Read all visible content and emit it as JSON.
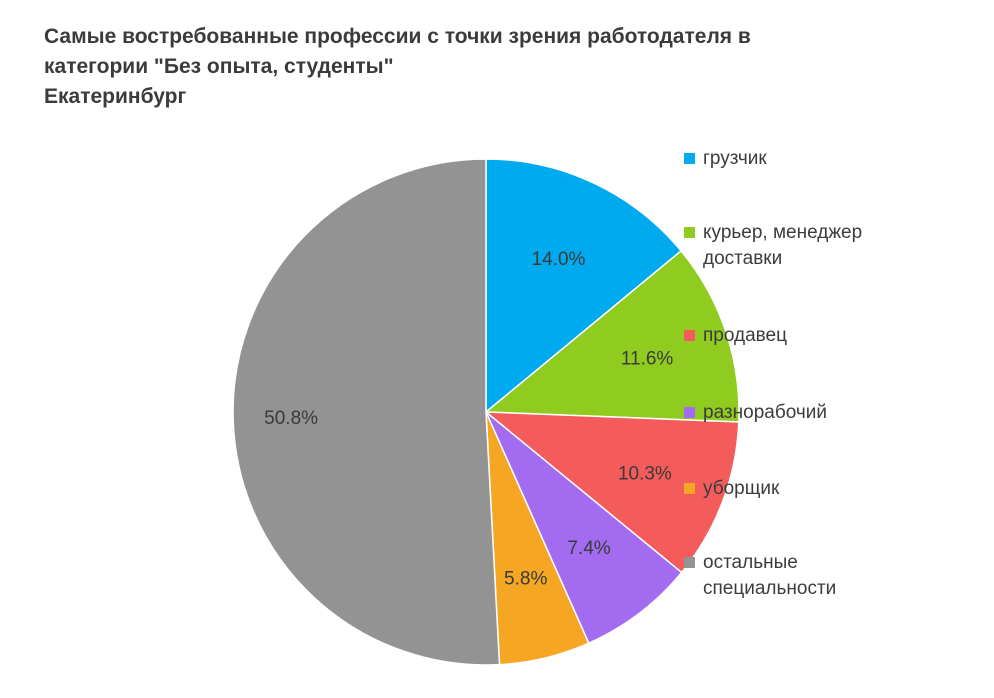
{
  "title_lines": [
    "Самые востребованные профессии с точки зрения работодателя в",
    "категории \"Без опыта, студенты\"",
    "Екатеринбург"
  ],
  "chart_data": {
    "type": "pie",
    "title": "Самые востребованные профессии с точки зрения работодателя в категории \"Без опыта, студенты\" Екатеринбург",
    "legend_position": "right",
    "slices": [
      {
        "label": "грузчик",
        "value": 14.0,
        "display": "14.0%",
        "color": "#00aaee"
      },
      {
        "label": "курьер, менеджер доставки",
        "value": 11.6,
        "display": "11.6%",
        "color": "#8fcc1f"
      },
      {
        "label": "продавец",
        "value": 10.3,
        "display": "10.3%",
        "color": "#f45b5b"
      },
      {
        "label": "разнорабочий",
        "value": 7.4,
        "display": "7.4%",
        "color": "#a36bf0"
      },
      {
        "label": "уборщик",
        "value": 5.8,
        "display": "5.8%",
        "color": "#f5a623"
      },
      {
        "label": "остальные специальности",
        "value": 50.8,
        "display": "50.8%",
        "color": "#939393"
      }
    ]
  }
}
